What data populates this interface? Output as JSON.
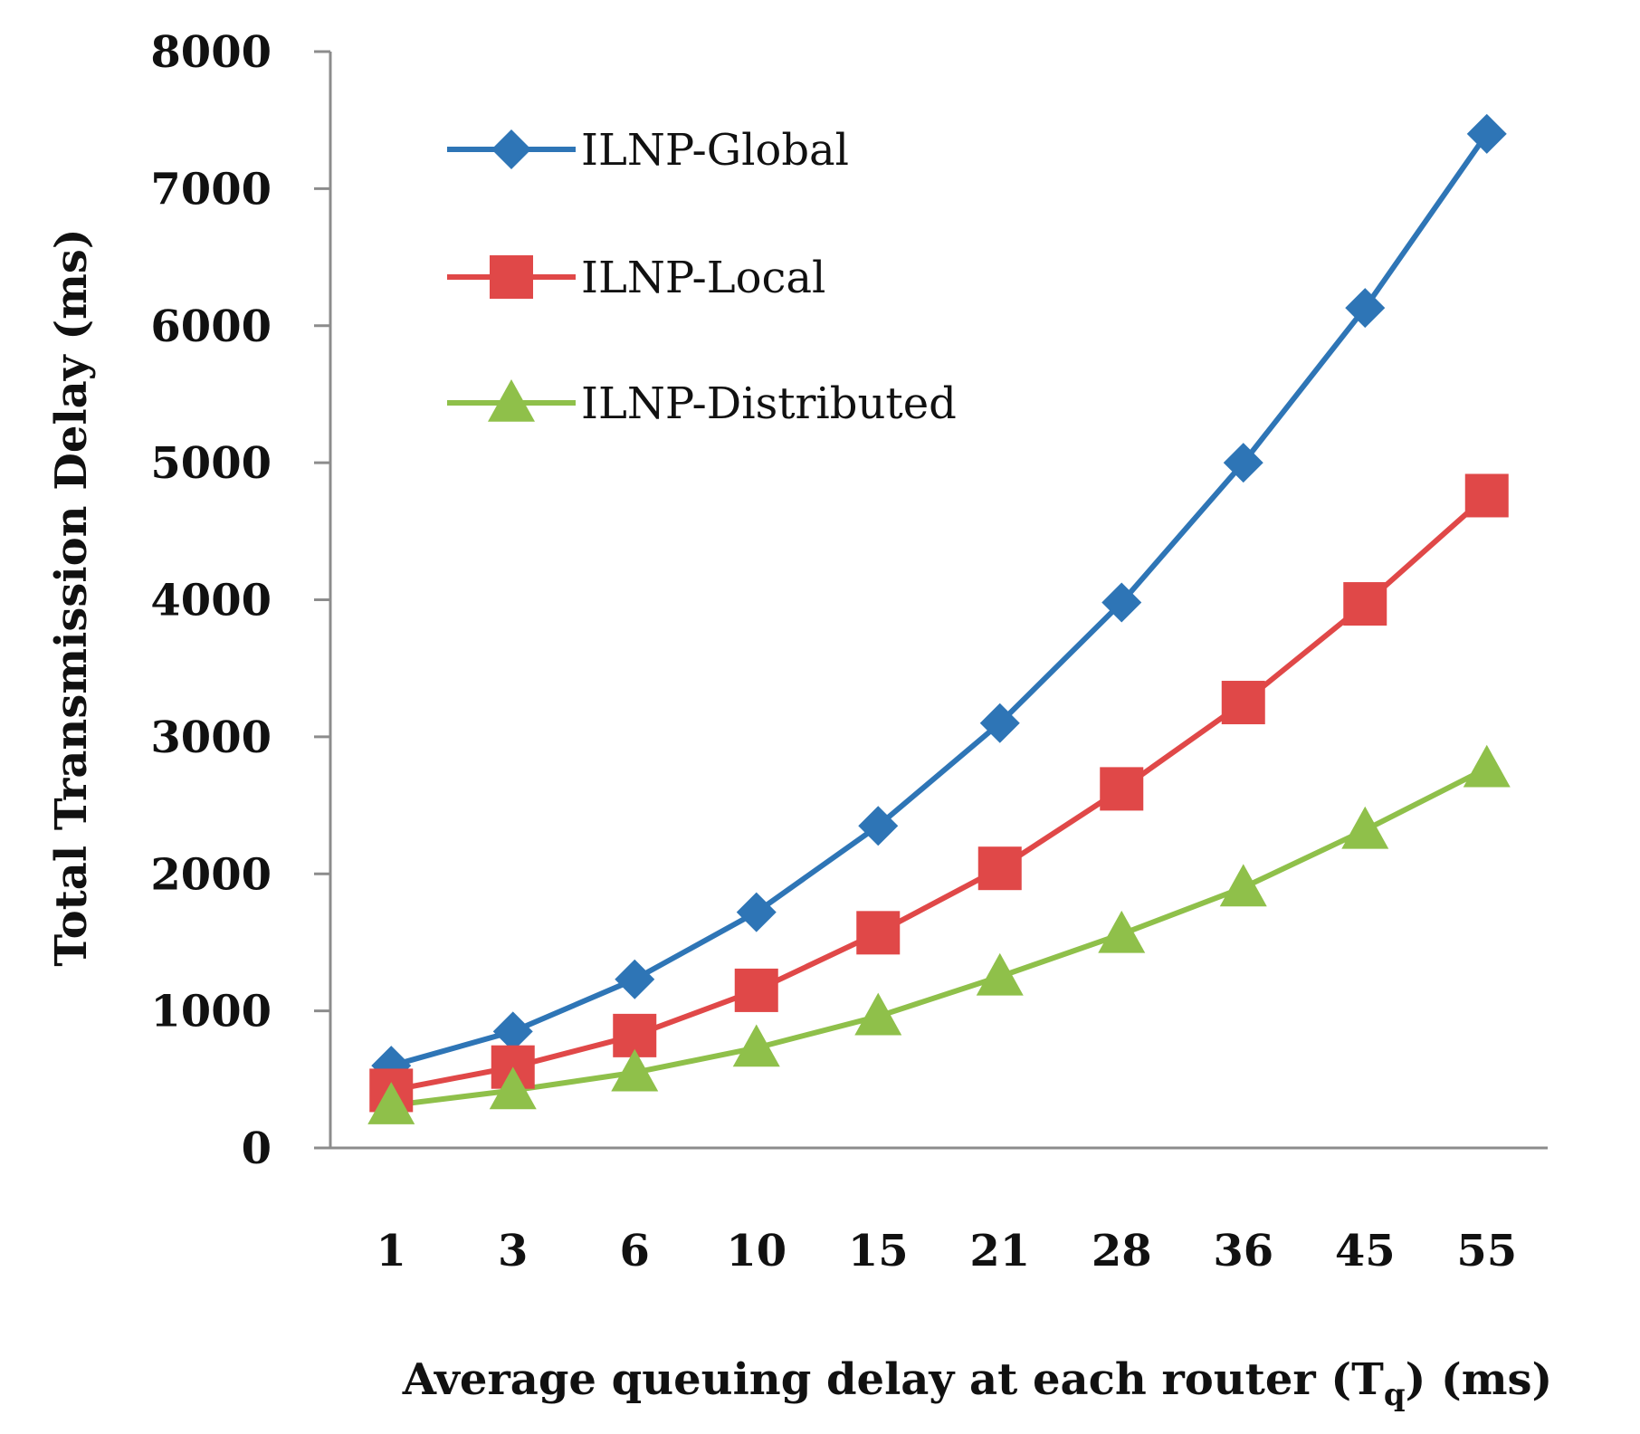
{
  "chart_data": {
    "type": "line",
    "title": "",
    "xlabel": "Average queuing delay at each router (T",
    "xlabel_subscript": "q",
    "xlabel_suffix": ") (ms)",
    "ylabel": "Total Transmission Delay (ms)",
    "ylim": [
      0,
      8000
    ],
    "yticks": [
      0,
      1000,
      2000,
      3000,
      4000,
      5000,
      6000,
      7000,
      8000
    ],
    "categories": [
      "1",
      "3",
      "6",
      "10",
      "15",
      "21",
      "28",
      "36",
      "45",
      "55"
    ],
    "grid": false,
    "legend_position": "top-left",
    "series": [
      {
        "name": "ILNP-Global",
        "color": "#2e75b6",
        "marker": "diamond",
        "values": [
          600,
          850,
          1230,
          1720,
          2350,
          3100,
          3980,
          5000,
          6130,
          7400
        ]
      },
      {
        "name": "ILNP-Local",
        "color": "#e04848",
        "marker": "square",
        "values": [
          420,
          590,
          820,
          1150,
          1570,
          2040,
          2620,
          3250,
          3970,
          4760
        ]
      },
      {
        "name": "ILNP-Distributed",
        "color": "#8fc04a",
        "marker": "triangle",
        "values": [
          310,
          420,
          550,
          730,
          960,
          1250,
          1560,
          1900,
          2320,
          2770
        ]
      }
    ]
  }
}
